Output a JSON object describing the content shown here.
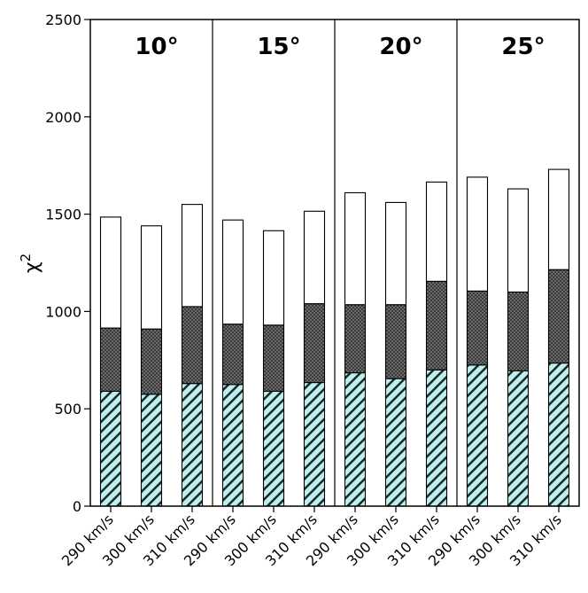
{
  "chart_data": {
    "type": "bar",
    "stacked": true,
    "ylabel": "χ²",
    "ylabel_base": "χ",
    "ylabel_sup": "2",
    "ylim": [
      0,
      2500
    ],
    "yticks": [
      0,
      500,
      1000,
      1500,
      2000,
      2500
    ],
    "grid": false,
    "panel_titles": [
      "10°",
      "15°",
      "20°",
      "25°"
    ],
    "categories": [
      "290 km/s",
      "300 km/s",
      "310 km/s",
      "290 km/s",
      "300 km/s",
      "310 km/s",
      "290 km/s",
      "300 km/s",
      "310 km/s",
      "290 km/s",
      "300 km/s",
      "310 km/s"
    ],
    "series": [
      {
        "key": "bottom",
        "values": [
          590,
          575,
          630,
          625,
          590,
          635,
          685,
          655,
          700,
          725,
          695,
          735
        ]
      },
      {
        "key": "middle",
        "values": [
          325,
          335,
          395,
          310,
          340,
          405,
          350,
          380,
          455,
          380,
          405,
          480
        ]
      },
      {
        "key": "top",
        "values": [
          570,
          530,
          525,
          535,
          485,
          475,
          575,
          525,
          510,
          585,
          530,
          515
        ]
      }
    ],
    "colors": {
      "bottom_fill": "#bfeeee",
      "bottom_hatch": "#1a2a2a",
      "middle_fill": "#5a5a5a",
      "top_fill": "#ffffff"
    }
  }
}
